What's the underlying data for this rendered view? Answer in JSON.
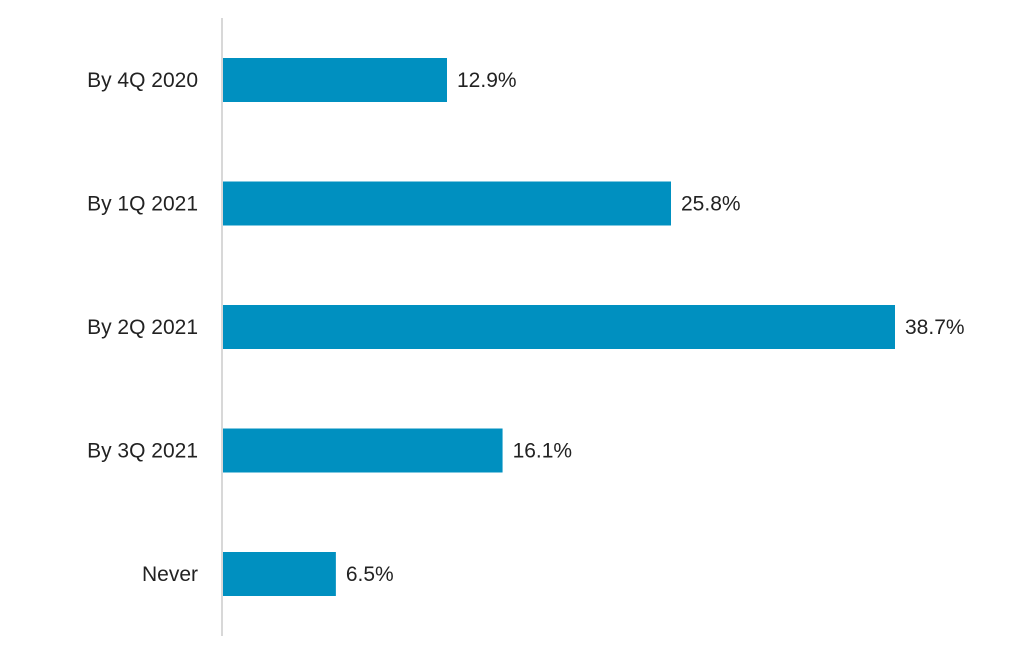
{
  "chart_data": {
    "type": "bar",
    "orientation": "horizontal",
    "categories": [
      "By 4Q 2020",
      "By 1Q 2021",
      "By 2Q 2021",
      "By 3Q 2021",
      "Never"
    ],
    "values": [
      12.9,
      25.8,
      38.7,
      16.1,
      6.5
    ],
    "data_labels": [
      "12.9%",
      "25.8%",
      "38.7%",
      "16.1%",
      "6.5%"
    ],
    "title": "",
    "xlabel": "",
    "ylabel": "",
    "xlim": [
      0,
      38.7
    ],
    "grid": false,
    "legend": "none",
    "bar_color": "#0090c0",
    "axis_color": "#cccccc"
  }
}
